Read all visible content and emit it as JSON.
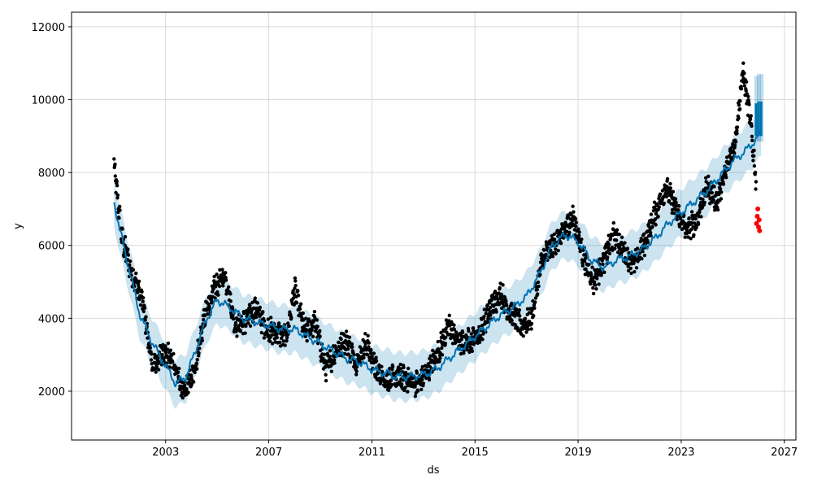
{
  "chart_data": {
    "type": "scatter",
    "title": "",
    "xlabel": "ds",
    "ylabel": "y",
    "xlim": [
      1999.35,
      2027.45
    ],
    "ylim": [
      660,
      12400
    ],
    "x_ticks": [
      2003,
      2007,
      2011,
      2015,
      2019,
      2023,
      2027
    ],
    "y_ticks": [
      2000,
      4000,
      6000,
      8000,
      10000,
      12000
    ],
    "grid": true,
    "colors": {
      "observed": "#000000",
      "forecast_line": "#0072B2",
      "interval": "#0072B2",
      "anomaly": "#ff0000",
      "grid": "#d9d9d9"
    },
    "series": [
      {
        "role": "forecast",
        "x": [
          2001.0,
          2001.2,
          2001.5,
          2002.0,
          2002.5,
          2003.0,
          2003.4,
          2003.8,
          2004.2,
          2004.6,
          2005.0,
          2005.5,
          2006.0,
          2006.5,
          2007.0,
          2007.5,
          2008.0,
          2008.5,
          2009.0,
          2009.5,
          2010.0,
          2010.5,
          2011.0,
          2011.5,
          2012.0,
          2012.5,
          2013.0,
          2013.5,
          2014.0,
          2014.5,
          2015.0,
          2015.5,
          2016.0,
          2016.5,
          2017.0,
          2017.5,
          2018.0,
          2018.5,
          2019.0,
          2019.5,
          2020.0,
          2020.5,
          2021.0,
          2021.5,
          2022.0,
          2022.5,
          2023.0,
          2023.5,
          2024.0,
          2024.5,
          2025.0,
          2025.5,
          2025.9,
          2026.1
        ],
        "y": [
          7200,
          6500,
          5600,
          4100,
          3300,
          2700,
          2200,
          2400,
          3200,
          4000,
          4500,
          4300,
          4000,
          3900,
          3800,
          3700,
          3700,
          3500,
          3300,
          3100,
          2900,
          2800,
          2600,
          2500,
          2400,
          2400,
          2450,
          2600,
          2900,
          3200,
          3500,
          3800,
          4100,
          4300,
          4600,
          5200,
          6000,
          6300,
          6100,
          5600,
          5400,
          5600,
          5700,
          5900,
          6200,
          6600,
          6900,
          7200,
          7500,
          7900,
          8300,
          8600,
          8900,
          9100
        ],
        "interval_halfwidth": 650
      },
      {
        "role": "future-forecast",
        "x": [
          2025.9,
          2026.0,
          2026.1
        ],
        "y_lower": [
          9000,
          9000,
          9000
        ],
        "y_upper": [
          9900,
          9950,
          9950
        ]
      }
    ],
    "observed_trend": {
      "x": [
        2001.0,
        2001.3,
        2001.7,
        2002.1,
        2002.5,
        2002.9,
        2003.3,
        2003.7,
        2004.1,
        2004.5,
        2004.9,
        2005.3,
        2005.7,
        2006.1,
        2006.5,
        2006.9,
        2007.3,
        2007.7,
        2008.0,
        2008.4,
        2008.8,
        2009.2,
        2009.6,
        2010.0,
        2010.4,
        2010.8,
        2011.2,
        2011.6,
        2012.0,
        2012.4,
        2012.8,
        2013.2,
        2013.6,
        2014.0,
        2014.4,
        2014.8,
        2015.2,
        2015.6,
        2016.0,
        2016.4,
        2016.8,
        2017.2,
        2017.6,
        2018.0,
        2018.4,
        2018.8,
        2019.2,
        2019.6,
        2020.0,
        2020.4,
        2020.8,
        2021.2,
        2021.6,
        2022.0,
        2022.4,
        2022.8,
        2023.2,
        2023.6,
        2024.0,
        2024.4,
        2024.8,
        2025.1,
        2025.4,
        2025.7,
        2025.9
      ],
      "y": [
        8200,
        6200,
        5200,
        4500,
        2600,
        3100,
        2800,
        1900,
        2500,
        4000,
        4800,
        5200,
        3800,
        3900,
        4300,
        3700,
        3600,
        3500,
        4800,
        3600,
        3900,
        2600,
        3100,
        3400,
        2800,
        3300,
        2500,
        2300,
        2400,
        2300,
        2200,
        2600,
        3100,
        3800,
        3300,
        3400,
        3600,
        4300,
        4700,
        4100,
        3800,
        4000,
        5600,
        6000,
        6300,
        6800,
        5700,
        5000,
        5600,
        6300,
        5800,
        5500,
        6100,
        6900,
        7600,
        7000,
        6400,
        6700,
        7600,
        7200,
        8200,
        8900,
        10800,
        9300,
        7800
      ],
      "spread": 260
    },
    "anomalies": {
      "x": [
        2025.92,
        2025.95,
        2025.97,
        2026.0,
        2026.02,
        2026.04
      ],
      "y": [
        6600,
        6800,
        7000,
        6500,
        6700,
        6400
      ]
    }
  }
}
